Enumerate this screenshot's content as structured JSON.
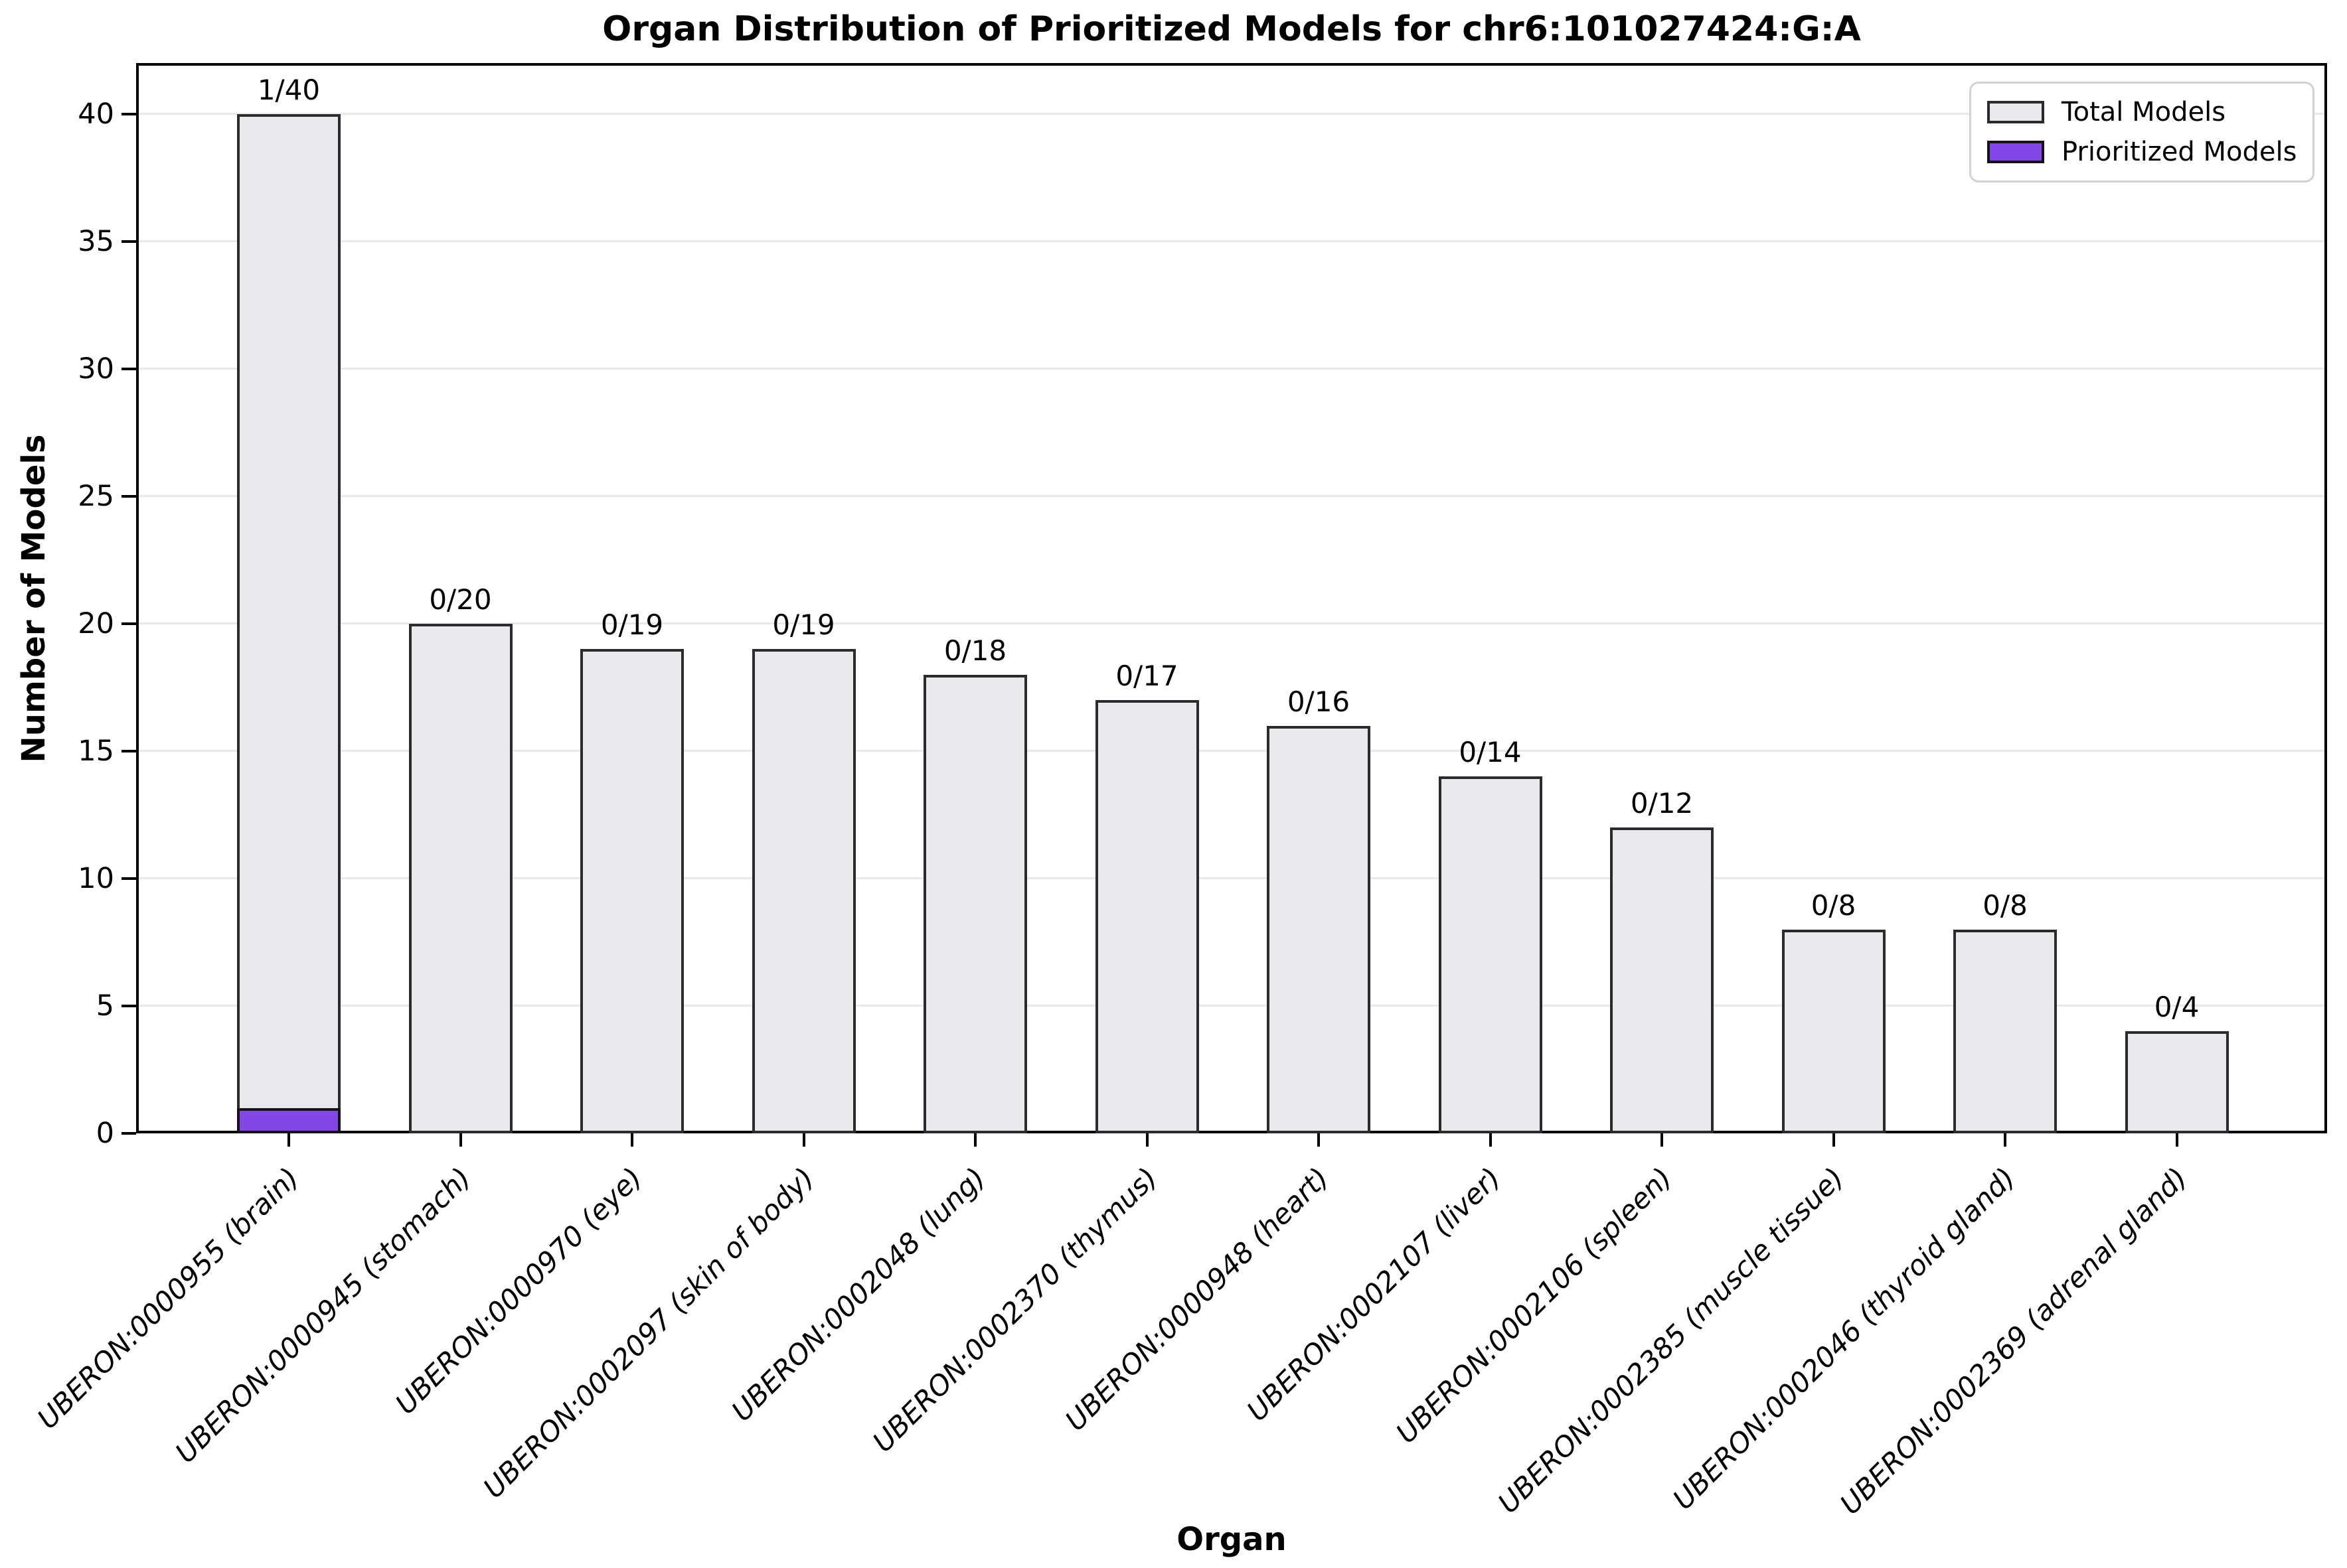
{
  "title": "Organ Distribution of Prioritized Models for chr6:101027424:G:A",
  "axes": {
    "xlabel": "Organ",
    "ylabel": "Number of Models",
    "yticks": [
      0,
      5,
      10,
      15,
      20,
      25,
      30,
      35,
      40
    ]
  },
  "legend": {
    "items": [
      {
        "label": "Total Models",
        "color": "#e9e9ed",
        "edge": "#2b2b2b"
      },
      {
        "label": "Prioritized Models",
        "color": "#8546e8",
        "edge": "#141414"
      }
    ],
    "position": "upper right"
  },
  "colors": {
    "total_fill": "#e9e9ed",
    "prioritized_fill": "#8546e8",
    "bar_edge": "#2b2b2b",
    "grid": "#e9e9e9",
    "background": "#ffffff"
  },
  "chart_data": {
    "type": "bar",
    "title": "Organ Distribution of Prioritized Models for chr6:101027424:G:A",
    "xlabel": "Organ",
    "ylabel": "Number of Models",
    "categories": [
      "UBERON:0000955 (brain)",
      "UBERON:0000945 (stomach)",
      "UBERON:0000970 (eye)",
      "UBERON:0002097 (skin of body)",
      "UBERON:0002048 (lung)",
      "UBERON:0002370 (thymus)",
      "UBERON:0000948 (heart)",
      "UBERON:0002107 (liver)",
      "UBERON:0002106 (spleen)",
      "UBERON:0002385 (muscle tissue)",
      "UBERON:0002046 (thyroid gland)",
      "UBERON:0002369 (adrenal gland)"
    ],
    "series": [
      {
        "name": "Total Models",
        "values": [
          40,
          20,
          19,
          19,
          18,
          17,
          16,
          14,
          12,
          8,
          8,
          4
        ]
      },
      {
        "name": "Prioritized Models",
        "values": [
          1,
          0,
          0,
          0,
          0,
          0,
          0,
          0,
          0,
          0,
          0,
          0
        ]
      }
    ],
    "bar_labels": [
      "1/40",
      "0/20",
      "0/19",
      "0/19",
      "0/18",
      "0/17",
      "0/16",
      "0/14",
      "0/12",
      "0/8",
      "0/8",
      "0/4"
    ],
    "ylim": [
      0,
      42
    ],
    "grid": true,
    "legend_position": "upper right"
  }
}
